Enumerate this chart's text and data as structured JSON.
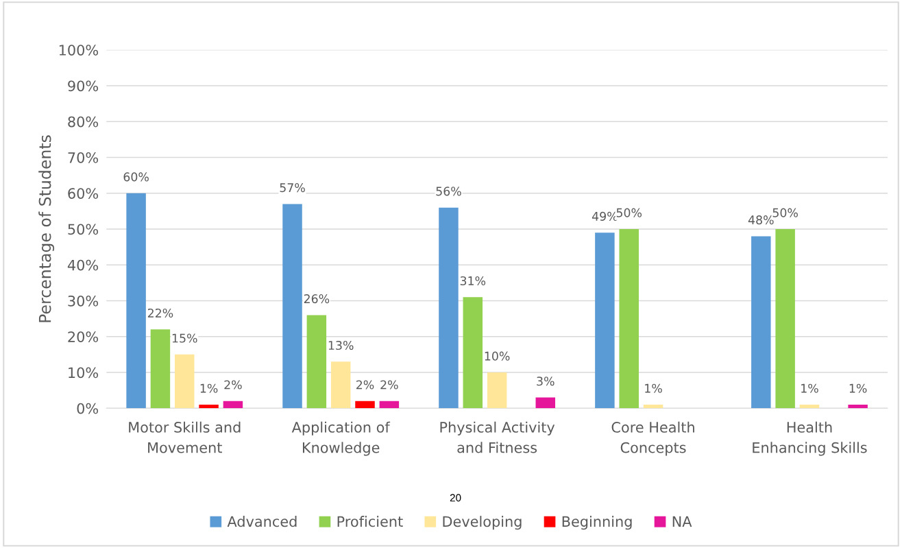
{
  "chart_data": {
    "type": "bar",
    "ylabel": "Percentage of Students",
    "categories": [
      "Motor Skills and\nMovement",
      "Application of\nKnowledge",
      "Physical Activity\nand Fitness",
      "Core Health\nConcepts",
      "Health\nEnhancing Skills"
    ],
    "series": [
      {
        "name": "Advanced",
        "color": "#5b9bd5",
        "values": [
          60,
          57,
          56,
          49,
          48
        ],
        "value_labels": [
          "60%",
          "57%",
          "56%",
          "49%",
          "48%"
        ]
      },
      {
        "name": "Proficient",
        "color": "#92d050",
        "values": [
          22,
          26,
          31,
          50,
          50
        ],
        "value_labels": [
          "22%",
          "26%",
          "31%",
          "50%",
          "50%"
        ]
      },
      {
        "name": "Developing",
        "color": "#ffe699",
        "values": [
          15,
          13,
          10,
          1,
          1
        ],
        "value_labels": [
          "15%",
          "13%",
          "10%",
          "1%",
          "1%"
        ]
      },
      {
        "name": "Beginning",
        "color": "#ff0000",
        "values": [
          1,
          2,
          0,
          0,
          0
        ],
        "value_labels": [
          "1%",
          "2%",
          null,
          null,
          null
        ]
      },
      {
        "name": "NA",
        "color": "#e6169a",
        "values": [
          2,
          2,
          3,
          0,
          1
        ],
        "value_labels": [
          "2%",
          "2%",
          "3%",
          null,
          "1%"
        ]
      }
    ],
    "ylim": [
      0,
      100
    ],
    "yticks": [
      {
        "value": 0,
        "label": "0%"
      },
      {
        "value": 10,
        "label": "10%"
      },
      {
        "value": 20,
        "label": "20%"
      },
      {
        "value": 30,
        "label": "30%"
      },
      {
        "value": 40,
        "label": "40%"
      },
      {
        "value": 50,
        "label": "50%"
      },
      {
        "value": 60,
        "label": "60%"
      },
      {
        "value": 70,
        "label": "70%"
      },
      {
        "value": 80,
        "label": "80%"
      },
      {
        "value": 90,
        "label": "90%"
      },
      {
        "value": 100,
        "label": "100%"
      }
    ],
    "grid": "y",
    "legend": "bottom",
    "annotations": [
      "20"
    ]
  }
}
